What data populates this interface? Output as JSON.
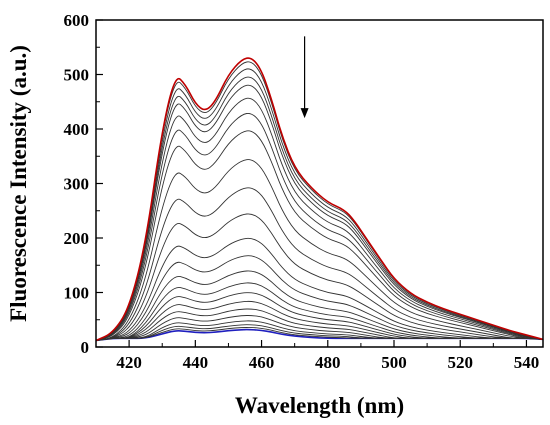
{
  "chart_data": {
    "type": "line",
    "title": "",
    "xlabel": "Wavelength (nm)",
    "ylabel": "Fluorescence Intensity (a.u.)",
    "xlim": [
      410,
      545
    ],
    "ylim": [
      0,
      600
    ],
    "x_ticks": [
      420,
      440,
      460,
      480,
      500,
      520,
      540
    ],
    "y_ticks": [
      0,
      100,
      200,
      300,
      400,
      500,
      600
    ],
    "grid": false,
    "legend": "none",
    "annotation": "downward arrow indicating decreasing intensity",
    "annotation_arrow": {
      "x": 473,
      "y_from": 570,
      "y_to": 420
    },
    "x": [
      410,
      415,
      420,
      425,
      430,
      434,
      437,
      440,
      443,
      446,
      450,
      454,
      457,
      460,
      463,
      466,
      470,
      475,
      480,
      485,
      488,
      492,
      496,
      500,
      505,
      510,
      515,
      520,
      525,
      530,
      535,
      540,
      545
    ],
    "base_profile": [
      12,
      25,
      70,
      190,
      400,
      500,
      482,
      446,
      432,
      450,
      500,
      528,
      532,
      508,
      455,
      390,
      328,
      292,
      265,
      252,
      232,
      196,
      160,
      125,
      98,
      82,
      70,
      60,
      50,
      40,
      30,
      22,
      14
    ],
    "series": [
      {
        "peak": 532,
        "color": "#c00000"
      },
      {
        "peak": 525,
        "color": "#333333"
      },
      {
        "peak": 512,
        "color": "#333333"
      },
      {
        "peak": 497,
        "color": "#333333"
      },
      {
        "peak": 482,
        "color": "#333333"
      },
      {
        "peak": 458,
        "color": "#333333"
      },
      {
        "peak": 430,
        "color": "#333333"
      },
      {
        "peak": 398,
        "color": "#333333"
      },
      {
        "peak": 345,
        "color": "#333333"
      },
      {
        "peak": 293,
        "color": "#333333"
      },
      {
        "peak": 245,
        "color": "#333333"
      },
      {
        "peak": 200,
        "color": "#333333"
      },
      {
        "peak": 168,
        "color": "#333333"
      },
      {
        "peak": 140,
        "color": "#333333"
      },
      {
        "peak": 118,
        "color": "#333333"
      },
      {
        "peak": 100,
        "color": "#333333"
      },
      {
        "peak": 84,
        "color": "#333333"
      },
      {
        "peak": 70,
        "color": "#333333"
      },
      {
        "peak": 58,
        "color": "#333333"
      },
      {
        "peak": 48,
        "color": "#333333"
      },
      {
        "peak": 41,
        "color": "#333333"
      },
      {
        "peak": 36,
        "color": "#333333"
      },
      {
        "peak": 32,
        "color": "#1f1fbf"
      }
    ]
  }
}
